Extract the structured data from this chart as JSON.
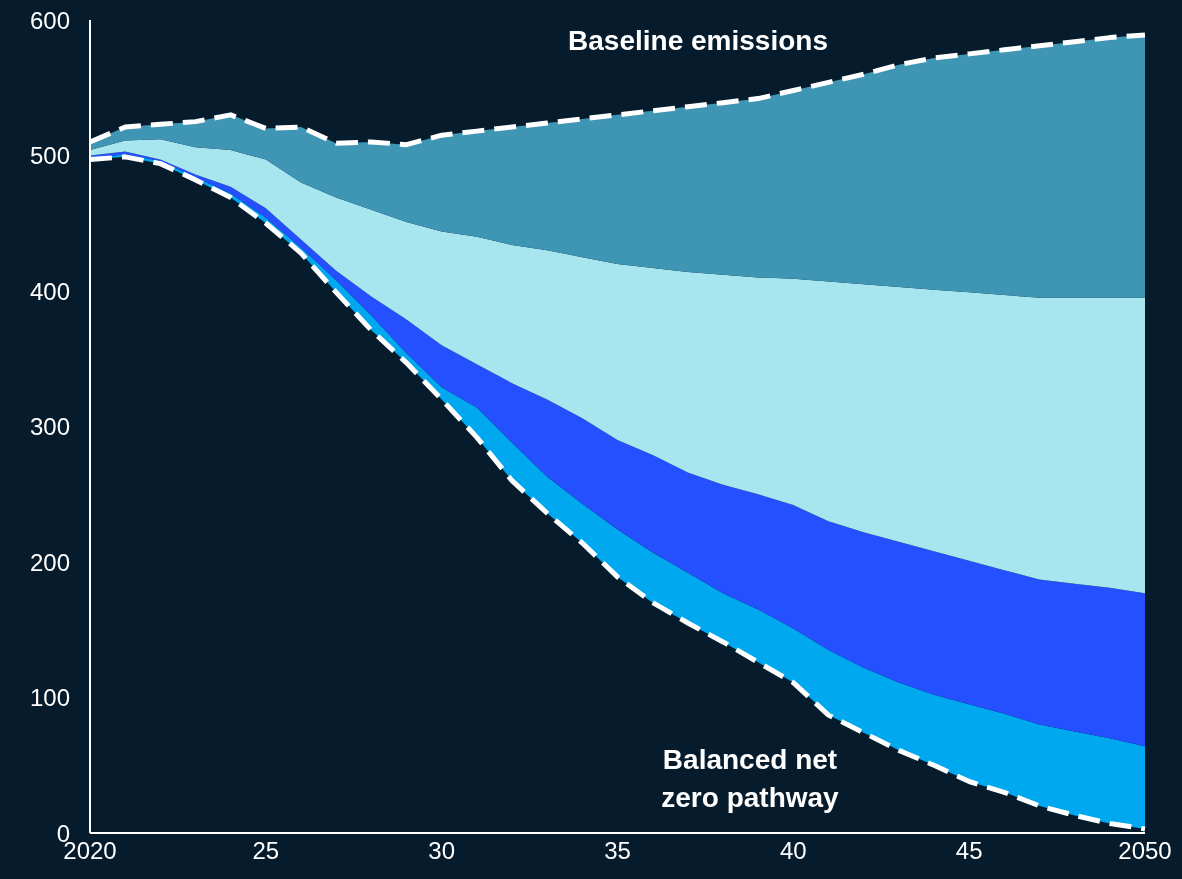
{
  "chart_data": {
    "type": "area",
    "stacked": true,
    "x": [
      2020,
      2021,
      2022,
      2023,
      2024,
      2025,
      2026,
      2027,
      2028,
      2029,
      2030,
      2031,
      2032,
      2033,
      2034,
      2035,
      2036,
      2037,
      2038,
      2039,
      2040,
      2041,
      2042,
      2043,
      2044,
      2045,
      2046,
      2047,
      2048,
      2049,
      2050
    ],
    "series": [
      {
        "line_style": "dashed",
        "color": "#061b2b",
        "values": [
          497,
          499,
          494,
          482,
          469,
          450,
          428,
          399,
          371,
          347,
          320,
          292,
          260,
          236,
          214,
          189,
          170,
          155,
          141,
          126,
          111,
          87,
          74,
          61,
          50,
          38,
          30,
          20,
          13,
          7,
          3
        ]
      },
      {
        "color": "#00a8f0",
        "values": [
          1,
          2,
          2,
          2,
          3,
          4,
          4,
          9,
          11,
          7,
          9,
          22,
          28,
          27,
          29,
          35,
          37,
          37,
          36,
          39,
          40,
          48,
          48,
          50,
          52,
          57,
          58,
          60,
          62,
          63,
          61
        ]
      },
      {
        "color": "#2450ff",
        "values": [
          2,
          2,
          1,
          2,
          5,
          7,
          6,
          7,
          14,
          25,
          31,
          32,
          44,
          57,
          63,
          66,
          72,
          74,
          80,
          85,
          91,
          95,
          100,
          104,
          106,
          106,
          106,
          107,
          109,
          111,
          113
        ]
      },
      {
        "color": "#a8e6ef",
        "values": [
          4,
          8,
          15,
          20,
          27,
          36,
          42,
          54,
          64,
          72,
          84,
          94,
          102,
          110,
          119,
          130,
          138,
          148,
          155,
          160,
          167,
          177,
          183,
          188,
          193,
          198,
          203,
          208,
          211,
          214,
          218
        ]
      },
      {
        "line_style": "dashed",
        "color": "#3e95b4",
        "values": [
          6,
          10,
          11,
          19,
          26,
          23,
          41,
          40,
          50,
          57,
          71,
          78,
          87,
          94,
          102,
          110,
          116,
          122,
          127,
          132,
          139,
          147,
          155,
          164,
          171,
          176,
          181,
          186,
          189,
          192,
          194
        ]
      }
    ],
    "xlim": [
      2020,
      2050
    ],
    "xticks": [
      2020,
      {
        "value": 2025,
        "label": "25"
      },
      {
        "value": 2030,
        "label": "30"
      },
      {
        "value": 2035,
        "label": "35"
      },
      {
        "value": 2040,
        "label": "40"
      },
      {
        "value": 2045,
        "label": "45"
      },
      2050
    ],
    "ylim": [
      0,
      600
    ],
    "yticks": [
      0,
      100,
      200,
      300,
      400,
      500,
      600
    ],
    "annotations": [
      "Baseline emissions",
      "Balanced net\nzero pathway"
    ]
  }
}
